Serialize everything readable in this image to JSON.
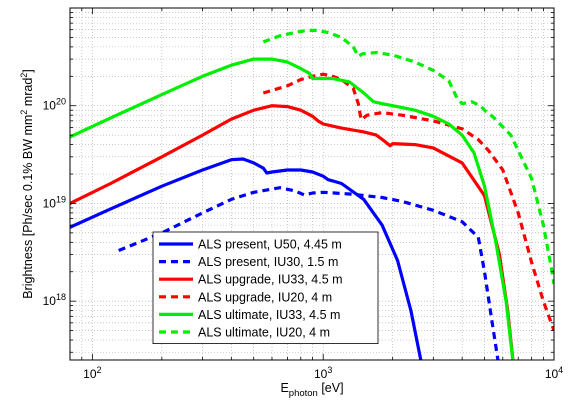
{
  "chart_data": {
    "type": "line",
    "xscale": "log",
    "yscale": "log",
    "xlim": [
      80,
      10000
    ],
    "ylim": [
      2.5e+17,
      1e+21
    ],
    "grid": true,
    "legend_position": "bottom-center",
    "xlabel": {
      "main": "E",
      "sub": "photon",
      "unit": " [eV]"
    },
    "ylabel": {
      "p1": "Brightness [Ph/sec 0.1% BW mm",
      "s1": "2",
      "p2": " mrad",
      "s2": "2",
      "p3": "]"
    },
    "x_ticks": [
      {
        "value": 100,
        "base": "10",
        "exp": "2"
      },
      {
        "value": 1000,
        "base": "10",
        "exp": "3"
      },
      {
        "value": 10000,
        "base": "10",
        "exp": "4"
      }
    ],
    "y_ticks": [
      {
        "value": 1e+18,
        "base": "10",
        "exp": "18"
      },
      {
        "value": 1e+19,
        "base": "10",
        "exp": "19"
      },
      {
        "value": 1e+20,
        "base": "10",
        "exp": "20"
      }
    ],
    "series": [
      {
        "name": "ALS present, U50, 4.45 m",
        "color": "#0000ff",
        "dash": "solid",
        "points": [
          [
            80,
            5.7e+18
          ],
          [
            120,
            8.8e+18
          ],
          [
            200,
            1.5e+19
          ],
          [
            300,
            2.2e+19
          ],
          [
            400,
            2.8e+19
          ],
          [
            450,
            2.85e+19
          ],
          [
            500,
            2.6e+19
          ],
          [
            550,
            2.3e+19
          ],
          [
            570,
            2.05e+19
          ],
          [
            600,
            2.1e+19
          ],
          [
            700,
            2.2e+19
          ],
          [
            800,
            2.2e+19
          ],
          [
            900,
            2.1e+19
          ],
          [
            1000,
            1.9e+19
          ],
          [
            1050,
            1.75e+19
          ],
          [
            1100,
            1.7e+19
          ],
          [
            1200,
            1.6e+19
          ],
          [
            1500,
            1.1e+19
          ],
          [
            1800,
            6e+18
          ],
          [
            2100,
            2.6e+18
          ],
          [
            2400,
            8e+17
          ],
          [
            2700,
            2e+17
          ]
        ]
      },
      {
        "name": "ALS present, IU30, 1.5 m",
        "color": "#0000ff",
        "dash": "dashed",
        "points": [
          [
            130,
            3.3e+18
          ],
          [
            200,
            5e+18
          ],
          [
            300,
            8e+18
          ],
          [
            400,
            1.1e+19
          ],
          [
            500,
            1.3e+19
          ],
          [
            650,
            1.45e+19
          ],
          [
            750,
            1.35e+19
          ],
          [
            830,
            1.22e+19
          ],
          [
            900,
            1.28e+19
          ],
          [
            1000,
            1.3e+19
          ],
          [
            1300,
            1.25e+19
          ],
          [
            1800,
            1.15e+19
          ],
          [
            2200,
            1.05e+19
          ],
          [
            3000,
            8.5e+18
          ],
          [
            4000,
            6.5e+18
          ],
          [
            4700,
            4.5e+18
          ],
          [
            5000,
            2e+18
          ],
          [
            5400,
            6e+17
          ],
          [
            5800,
            2e+17
          ]
        ]
      },
      {
        "name": "ALS upgrade, IU33, 4.5 m",
        "color": "#ff0000",
        "dash": "solid",
        "points": [
          [
            80,
            1e+19
          ],
          [
            120,
            1.6e+19
          ],
          [
            200,
            3e+19
          ],
          [
            300,
            5e+19
          ],
          [
            400,
            7.3e+19
          ],
          [
            500,
            9e+19
          ],
          [
            600,
            1e+20
          ],
          [
            700,
            9.8e+19
          ],
          [
            800,
            9e+19
          ],
          [
            900,
            7.8e+19
          ],
          [
            950,
            7e+19
          ],
          [
            1000,
            6.5e+19
          ],
          [
            1200,
            5.9e+19
          ],
          [
            1500,
            5.4e+19
          ],
          [
            1700,
            5e+19
          ],
          [
            1850,
            4.3e+19
          ],
          [
            1950,
            3.9e+19
          ],
          [
            2000,
            4.1e+19
          ],
          [
            2500,
            4e+19
          ],
          [
            3000,
            3.7e+19
          ],
          [
            4000,
            2.6e+19
          ],
          [
            5000,
            1.2e+19
          ],
          [
            5800,
            3e+18
          ],
          [
            6300,
            8e+17
          ],
          [
            6700,
            2e+17
          ]
        ]
      },
      {
        "name": "ALS upgrade, IU20, 4 m",
        "color": "#ff0000",
        "dash": "dashed",
        "points": [
          [
            550,
            1.35e+20
          ],
          [
            700,
            1.6e+20
          ],
          [
            800,
            1.85e+20
          ],
          [
            900,
            2e+20
          ],
          [
            1000,
            2.1e+20
          ],
          [
            1100,
            2e+20
          ],
          [
            1200,
            1.85e+20
          ],
          [
            1350,
            1.5e+20
          ],
          [
            1420,
            1.05e+20
          ],
          [
            1460,
            7.2e+19
          ],
          [
            1550,
            8e+19
          ],
          [
            1800,
            8.5e+19
          ],
          [
            2200,
            8e+19
          ],
          [
            3000,
            7e+19
          ],
          [
            4000,
            5.8e+19
          ],
          [
            4700,
            4.5e+19
          ],
          [
            5200,
            3.5e+19
          ],
          [
            6000,
            2.2e+19
          ],
          [
            7000,
            8e+18
          ],
          [
            8000,
            2.5e+18
          ],
          [
            9000,
            1e+18
          ],
          [
            10000,
            5e+17
          ]
        ]
      },
      {
        "name": "ALS ultimate, IU33, 4.5 m",
        "color": "#00ee00",
        "dash": "solid",
        "points": [
          [
            80,
            4.8e+19
          ],
          [
            120,
            7.5e+19
          ],
          [
            200,
            1.3e+20
          ],
          [
            300,
            2e+20
          ],
          [
            400,
            2.6e+20
          ],
          [
            500,
            3e+20
          ],
          [
            600,
            3e+20
          ],
          [
            700,
            2.8e+20
          ],
          [
            800,
            2.4e+20
          ],
          [
            870,
            2.15e+20
          ],
          [
            900,
            1.9e+20
          ],
          [
            950,
            1.9e+20
          ],
          [
            1100,
            1.9e+20
          ],
          [
            1300,
            1.75e+20
          ],
          [
            1500,
            1.35e+20
          ],
          [
            1650,
            1.1e+20
          ],
          [
            1800,
            1.05e+20
          ],
          [
            2000,
            1e+20
          ],
          [
            2500,
            9e+19
          ],
          [
            3000,
            7.8e+19
          ],
          [
            3500,
            6.5e+19
          ],
          [
            4000,
            5e+19
          ],
          [
            4500,
            3.3e+19
          ],
          [
            5000,
            1.5e+19
          ],
          [
            5600,
            4e+18
          ],
          [
            6200,
            1e+18
          ],
          [
            6700,
            2e+17
          ]
        ]
      },
      {
        "name": "ALS ultimate, IU20, 4 m",
        "color": "#00ee00",
        "dash": "dashed",
        "points": [
          [
            550,
            4.5e+20
          ],
          [
            650,
            5.2e+20
          ],
          [
            750,
            5.6e+20
          ],
          [
            850,
            5.9e+20
          ],
          [
            950,
            5.9e+20
          ],
          [
            1050,
            5.6e+20
          ],
          [
            1200,
            5e+20
          ],
          [
            1350,
            4e+20
          ],
          [
            1420,
            3.2e+20
          ],
          [
            1480,
            3.4e+20
          ],
          [
            1700,
            3.5e+20
          ],
          [
            2000,
            3.3e+20
          ],
          [
            2500,
            2.8e+20
          ],
          [
            3000,
            2.3e+20
          ],
          [
            3500,
            1.8e+20
          ],
          [
            3800,
            1.2e+20
          ],
          [
            4000,
            1.05e+20
          ],
          [
            4400,
            1.1e+20
          ],
          [
            4800,
            1e+20
          ],
          [
            5000,
            9e+19
          ],
          [
            5500,
            7.5e+19
          ],
          [
            6500,
            5e+19
          ],
          [
            8000,
            1.8e+19
          ],
          [
            9000,
            6e+18
          ],
          [
            9800,
            2e+18
          ],
          [
            10000,
            1.5e+18
          ]
        ]
      }
    ]
  }
}
